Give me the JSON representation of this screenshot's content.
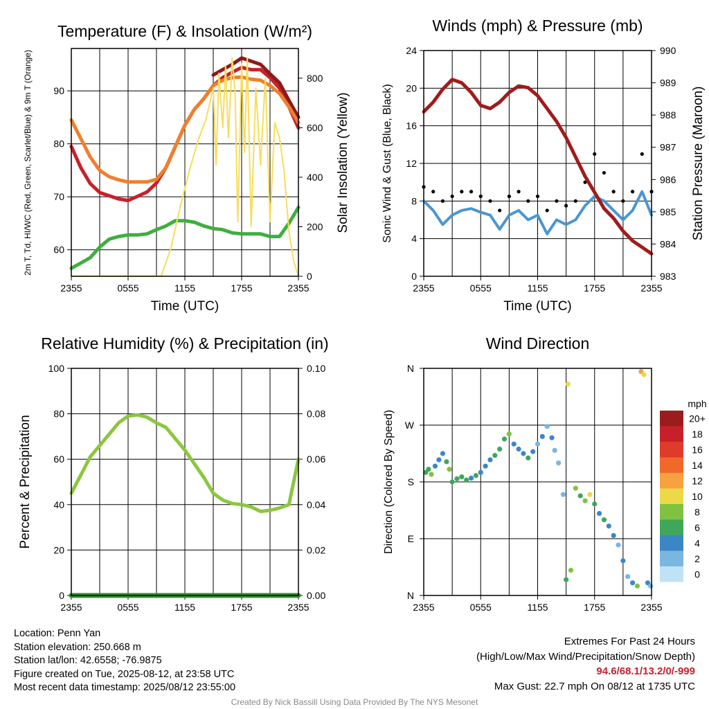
{
  "chart_data": [
    {
      "type": "line",
      "title": "Temperature (F) & Insolation (W/m²)",
      "xlabel": "Time (UTC)",
      "ylabel": "2m T, Td, HI/WC (Red, Green, Scarlet/Blue) & 9m T (Orange)",
      "y2label": "Solar Insolation (Yellow)",
      "x_ticks": [
        "2355",
        "0555",
        "1155",
        "1755",
        "2355"
      ],
      "ylim": [
        55,
        98
      ],
      "y_ticks": [
        60,
        70,
        80,
        90
      ],
      "y2lim": [
        0,
        920
      ],
      "y2_ticks": [
        0,
        200,
        400,
        600,
        800
      ],
      "series": [
        {
          "name": "2m T",
          "color": "#c8202a",
          "axis": "left",
          "x": [
            0,
            1,
            2,
            3,
            4,
            5,
            6,
            7,
            8,
            9,
            10,
            11,
            12,
            13,
            14,
            15,
            16,
            17,
            18,
            19,
            20,
            21,
            22,
            23,
            24
          ],
          "values": [
            79.5,
            75.5,
            72.5,
            70.8,
            70.2,
            69.6,
            69.3,
            70.1,
            70.9,
            72.6,
            75.5,
            79.5,
            83.5,
            86.5,
            88.5,
            91,
            92.5,
            93.5,
            94.4,
            94,
            94,
            92.5,
            90.5,
            87,
            83
          ]
        },
        {
          "name": "Heat Index",
          "color": "#8e1a1a",
          "axis": "left",
          "x": [
            15,
            16,
            17,
            18,
            19,
            20,
            21,
            22,
            23,
            24
          ],
          "values": [
            93,
            94,
            95,
            96.2,
            95.6,
            95,
            93.2,
            91.5,
            88.2,
            85
          ]
        },
        {
          "name": "2m Td",
          "color": "#3fae3f",
          "axis": "left",
          "x": [
            0,
            1,
            2,
            3,
            4,
            5,
            6,
            7,
            8,
            9,
            10,
            11,
            12,
            13,
            14,
            15,
            16,
            17,
            18,
            19,
            20,
            21,
            22,
            23,
            24
          ],
          "values": [
            56.5,
            57.5,
            58.5,
            60.5,
            62,
            62.5,
            62.8,
            62.8,
            63,
            63.8,
            64.5,
            65.5,
            65.5,
            65.2,
            64.5,
            64,
            63.8,
            63.2,
            63,
            63,
            63,
            62.5,
            62.5,
            65,
            68
          ]
        },
        {
          "name": "9m T",
          "color": "#f07f2c",
          "axis": "left",
          "x": [
            0,
            1,
            2,
            3,
            4,
            5,
            6,
            7,
            8,
            9,
            10,
            11,
            12,
            13,
            14,
            15,
            16,
            17,
            18,
            19,
            20,
            21,
            22,
            23,
            24
          ],
          "values": [
            84.5,
            81,
            77.5,
            75,
            73.8,
            73.2,
            72.8,
            72.8,
            72.8,
            73.3,
            75.5,
            79.5,
            83.5,
            86.5,
            88.5,
            91,
            92,
            92.5,
            92.6,
            92.2,
            92,
            91,
            89.5,
            87,
            84
          ]
        },
        {
          "name": "Solar Insolation",
          "color": "#f5de5a",
          "axis": "right",
          "x": [
            0,
            8.5,
            9.5,
            10.5,
            11.5,
            12.5,
            13.5,
            14.2,
            15,
            15.3,
            15.6,
            16,
            16.3,
            16.6,
            17,
            17.3,
            17.6,
            18,
            18.3,
            18.6,
            19,
            19.5,
            20,
            20.5,
            21,
            21.5,
            22,
            22.5,
            23,
            23.5,
            24
          ],
          "values": [
            0,
            0,
            0,
            110,
            280,
            430,
            560,
            630,
            760,
            450,
            820,
            600,
            850,
            560,
            880,
            750,
            220,
            860,
            500,
            880,
            200,
            760,
            450,
            800,
            220,
            620,
            560,
            420,
            180,
            60,
            0
          ]
        }
      ]
    },
    {
      "type": "line",
      "title": "Winds (mph) & Pressure (mb)",
      "xlabel": "Time (UTC)",
      "ylabel": "Sonic Wind & Gust (Blue, Black)",
      "y2label": "Station Pressure (Maroon)",
      "x_ticks": [
        "2355",
        "0555",
        "1155",
        "1755",
        "2355"
      ],
      "ylim": [
        0,
        24
      ],
      "y_ticks": [
        0,
        4,
        8,
        12,
        16,
        20,
        24
      ],
      "y2lim": [
        983,
        990
      ],
      "y2_ticks": [
        983,
        984,
        985,
        986,
        987,
        988,
        989,
        990
      ],
      "series": [
        {
          "name": "Sonic Wind",
          "color": "#4a96d2",
          "axis": "left",
          "x": [
            0,
            1,
            2,
            3,
            4,
            5,
            6,
            7,
            8,
            9,
            10,
            11,
            12,
            13,
            14,
            15,
            16,
            17,
            18,
            19,
            20,
            21,
            22,
            23,
            24
          ],
          "values": [
            8,
            7,
            5.5,
            6.5,
            7,
            7.2,
            6.8,
            6.5,
            5,
            6.5,
            7,
            6,
            6.5,
            4.5,
            6,
            5.5,
            6,
            7.5,
            8.5,
            8,
            7,
            6,
            7,
            9,
            6.5
          ]
        },
        {
          "name": "Gust",
          "color": "#000000",
          "axis": "left",
          "x": [
            0,
            1,
            2,
            3,
            4,
            5,
            6,
            7,
            8,
            9,
            10,
            11,
            12,
            13,
            14,
            15,
            16,
            17,
            18,
            19,
            20,
            21,
            22,
            23,
            24
          ],
          "values": [
            9.5,
            9,
            8,
            8.5,
            9,
            9,
            8.5,
            8,
            7,
            8.5,
            9,
            8,
            8.5,
            7,
            8,
            7.5,
            8,
            10,
            13,
            11,
            9,
            8,
            9,
            13,
            9
          ]
        },
        {
          "name": "Station Pressure",
          "color": "#a01c1c",
          "axis": "right",
          "x": [
            0,
            1,
            2,
            3,
            4,
            5,
            6,
            7,
            8,
            9,
            10,
            11,
            12,
            13,
            14,
            15,
            16,
            17,
            18,
            19,
            20,
            21,
            22,
            23,
            24
          ],
          "values": [
            988.1,
            988.4,
            988.8,
            989.1,
            989,
            988.7,
            988.3,
            988.2,
            988.4,
            988.7,
            988.9,
            988.85,
            988.6,
            988.2,
            987.8,
            987.3,
            986.7,
            986.1,
            985.6,
            985.1,
            984.8,
            984.4,
            984.1,
            983.9,
            983.7
          ]
        }
      ]
    },
    {
      "type": "line",
      "title": "Relative Humidity (%) & Precipitation (in)",
      "ylabel": "Percent & Precipitation",
      "x_ticks": [
        "2355",
        "0555",
        "1155",
        "1755",
        "2355"
      ],
      "ylim": [
        0,
        100
      ],
      "y_ticks": [
        0,
        20,
        40,
        60,
        80,
        100
      ],
      "y2lim": [
        0,
        0.1
      ],
      "y2_ticks": [
        "0.00",
        "0.02",
        "0.04",
        "0.06",
        "0.08",
        "0.10"
      ],
      "series": [
        {
          "name": "Relative Humidity",
          "color": "#8cc63f",
          "axis": "left",
          "x": [
            0,
            1,
            2,
            3,
            4,
            5,
            6,
            7,
            8,
            9,
            10,
            11,
            12,
            13,
            14,
            15,
            16,
            17,
            18,
            19,
            20,
            21,
            22,
            23,
            24
          ],
          "values": [
            45,
            53,
            61,
            66,
            71,
            76,
            79,
            79.5,
            78.5,
            76,
            74,
            69,
            64,
            58,
            52,
            45,
            42,
            40.5,
            40,
            39,
            37,
            37.5,
            38.5,
            40,
            60
          ]
        },
        {
          "name": "Precipitation",
          "color": "#2f8f2f",
          "axis": "right",
          "x": [
            0,
            24
          ],
          "values": [
            0,
            0
          ]
        }
      ]
    },
    {
      "type": "scatter",
      "title": "Wind Direction",
      "ylabel": "Direction (Colored By Speed)",
      "x_ticks": [
        "2355",
        "0555",
        "1155",
        "1755",
        "2355"
      ],
      "y_ticks": [
        "N",
        "E",
        "S",
        "W",
        "N"
      ],
      "ylim": [
        0,
        360
      ],
      "colorbar": {
        "unit": "mph",
        "labels": [
          "20+",
          "18",
          "16",
          "14",
          "12",
          "10",
          "8",
          "6",
          "4",
          "2",
          "0"
        ],
        "colors": [
          "#9b1c1c",
          "#c8202a",
          "#e03a2a",
          "#f0682a",
          "#f7a23f",
          "#ecd948",
          "#7fc242",
          "#3fa65a",
          "#3d86c6",
          "#7ab6e0",
          "#bfe3f5"
        ]
      },
      "points": [
        {
          "x": 0.2,
          "y": 195,
          "s": 6
        },
        {
          "x": 0.5,
          "y": 200,
          "s": 7
        },
        {
          "x": 0.8,
          "y": 192,
          "s": 9
        },
        {
          "x": 1.2,
          "y": 205,
          "s": 5
        },
        {
          "x": 1.6,
          "y": 215,
          "s": 4
        },
        {
          "x": 2.0,
          "y": 225,
          "s": 5
        },
        {
          "x": 2.4,
          "y": 212,
          "s": 7
        },
        {
          "x": 2.7,
          "y": 200,
          "s": 8
        },
        {
          "x": 3.0,
          "y": 180,
          "s": 6
        },
        {
          "x": 3.5,
          "y": 185,
          "s": 6
        },
        {
          "x": 4.0,
          "y": 188,
          "s": 7
        },
        {
          "x": 4.5,
          "y": 183,
          "s": 6
        },
        {
          "x": 5.0,
          "y": 186,
          "s": 5
        },
        {
          "x": 5.5,
          "y": 190,
          "s": 6
        },
        {
          "x": 6.0,
          "y": 195,
          "s": 4
        },
        {
          "x": 6.5,
          "y": 205,
          "s": 5
        },
        {
          "x": 7.0,
          "y": 215,
          "s": 4
        },
        {
          "x": 7.5,
          "y": 222,
          "s": 6
        },
        {
          "x": 8.0,
          "y": 232,
          "s": 7
        },
        {
          "x": 8.5,
          "y": 248,
          "s": 6
        },
        {
          "x": 9.0,
          "y": 256,
          "s": 8
        },
        {
          "x": 9.5,
          "y": 240,
          "s": 5
        },
        {
          "x": 10.0,
          "y": 232,
          "s": 4
        },
        {
          "x": 10.5,
          "y": 225,
          "s": 5
        },
        {
          "x": 11.0,
          "y": 218,
          "s": 6
        },
        {
          "x": 11.5,
          "y": 228,
          "s": 4
        },
        {
          "x": 12.0,
          "y": 240,
          "s": 3
        },
        {
          "x": 12.5,
          "y": 252,
          "s": 4
        },
        {
          "x": 13.0,
          "y": 268,
          "s": 3
        },
        {
          "x": 13.5,
          "y": 250,
          "s": 4
        },
        {
          "x": 13.8,
          "y": 230,
          "s": 3
        },
        {
          "x": 14.2,
          "y": 210,
          "s": 2
        },
        {
          "x": 14.7,
          "y": 160,
          "s": 3
        },
        {
          "x": 15.0,
          "y": 25,
          "s": 6
        },
        {
          "x": 15.2,
          "y": 335,
          "s": 11
        },
        {
          "x": 15.5,
          "y": 40,
          "s": 8
        },
        {
          "x": 16.0,
          "y": 170,
          "s": 8
        },
        {
          "x": 16.5,
          "y": 158,
          "s": 7
        },
        {
          "x": 17.0,
          "y": 150,
          "s": 9
        },
        {
          "x": 17.5,
          "y": 160,
          "s": 10
        },
        {
          "x": 18.0,
          "y": 145,
          "s": 6
        },
        {
          "x": 18.5,
          "y": 130,
          "s": 5
        },
        {
          "x": 19.0,
          "y": 120,
          "s": 6
        },
        {
          "x": 19.5,
          "y": 110,
          "s": 4
        },
        {
          "x": 20.0,
          "y": 95,
          "s": 4
        },
        {
          "x": 20.5,
          "y": 80,
          "s": 3
        },
        {
          "x": 21.0,
          "y": 55,
          "s": 4
        },
        {
          "x": 21.5,
          "y": 30,
          "s": 3
        },
        {
          "x": 22.0,
          "y": 20,
          "s": 5
        },
        {
          "x": 22.5,
          "y": 15,
          "s": 8
        },
        {
          "x": 22.9,
          "y": 355,
          "s": 12
        },
        {
          "x": 23.2,
          "y": 350,
          "s": 10
        },
        {
          "x": 23.6,
          "y": 20,
          "s": 4
        },
        {
          "x": 23.9,
          "y": 15,
          "s": 3
        }
      ]
    }
  ],
  "footer": {
    "location": "Location: Penn Yan",
    "elevation": "Station elevation: 250.668 m",
    "latlon": "Station lat/lon: 42.6558; -76.9875",
    "created": "Figure created on Tue, 2025-08-12, at 23:58 UTC",
    "timestamp": "Most recent data timestamp: 2025/08/12 23:55:00",
    "extremes_title": "Extremes For Past 24 Hours",
    "extremes_subtitle": "(High/Low/Max Wind/Precipitation/Snow Depth)",
    "extremes_values": "94.6/68.1/13.2/0/-999",
    "max_gust": "Max Gust: 22.7 mph On 08/12 at 1735 UTC",
    "credit": "Created By Nick Bassill Using Data Provided By The NYS Mesonet"
  }
}
